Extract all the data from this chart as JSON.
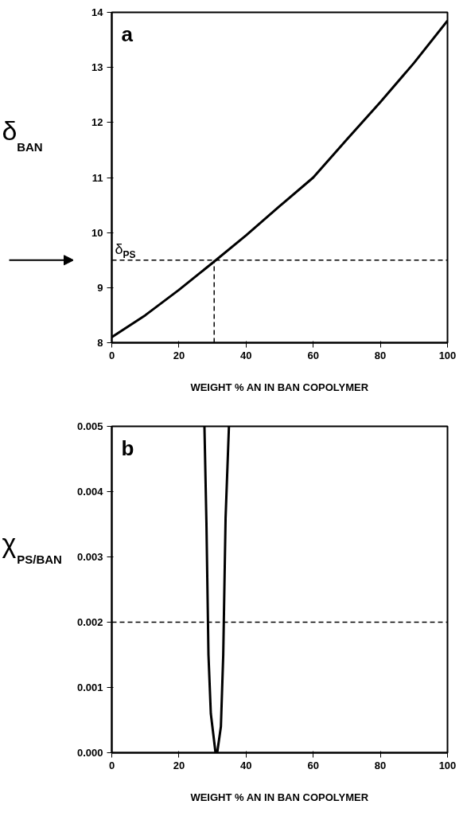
{
  "chart_data": [
    {
      "type": "line",
      "xlabel": "WEIGHT % AN IN BAN COPOLYMER",
      "ylabel": "δ$_{BAN}$",
      "xlim": [
        0,
        100
      ],
      "ylim": [
        8,
        14
      ],
      "xticks": [
        0,
        20,
        40,
        60,
        80,
        100
      ],
      "yticks": [
        8,
        9,
        10,
        11,
        12,
        13,
        14
      ],
      "grid": false,
      "marker": "none",
      "annotations": [
        "a"
      ],
      "ref_lines": [
        {
          "axis": "y",
          "value": 9.5,
          "label": "δ$_{PS}$",
          "color": "#000000",
          "line_style": "dashed"
        }
      ],
      "series": [
        {
          "color": "#000000",
          "line_style": "solid",
          "x": [
            0,
            10,
            20,
            30,
            40,
            50,
            60,
            70,
            80,
            90,
            100
          ],
          "values": [
            8.1,
            8.5,
            8.96,
            9.45,
            9.95,
            10.48,
            11.0,
            11.69,
            12.37,
            13.08,
            13.85
          ]
        },
        {
          "color": "#000000",
          "line_style": "dashed",
          "x": [
            30.5,
            30.5
          ],
          "values": [
            8,
            9.5
          ]
        }
      ]
    },
    {
      "type": "line",
      "xlabel": "WEIGHT % AN IN BAN COPOLYMER",
      "ylabel": "χ$_{PS/BAN}$",
      "xlim": [
        0,
        100
      ],
      "ylim": [
        0,
        0.005
      ],
      "xticks": [
        0,
        20,
        40,
        60,
        80,
        100
      ],
      "yticks": [
        {
          "value": 0,
          "label": "0.000"
        },
        {
          "value": 0.001,
          "label": "0.001"
        },
        {
          "value": 0.002,
          "label": "0.002"
        },
        {
          "value": 0.003,
          "label": "0.003"
        },
        {
          "value": 0.004,
          "label": "0.004"
        },
        {
          "value": 0.005,
          "label": "0.005"
        }
      ],
      "grid": false,
      "marker": "none",
      "annotations": [
        "b"
      ],
      "ref_lines": [
        {
          "axis": "y",
          "value": 0.002,
          "color": "#000000",
          "line_style": "dashed"
        }
      ],
      "series": [
        {
          "color": "#000000",
          "line_style": "solid",
          "x": [
            27.6,
            28.2,
            28.8,
            29.5,
            30.9,
            31.4,
            32.5,
            33.2,
            33.9,
            34.9
          ],
          "values": [
            0.005,
            0.0035,
            0.0015,
            0.0006,
            0,
            0,
            0.0004,
            0.0015,
            0.0036,
            0.005
          ]
        }
      ]
    }
  ]
}
